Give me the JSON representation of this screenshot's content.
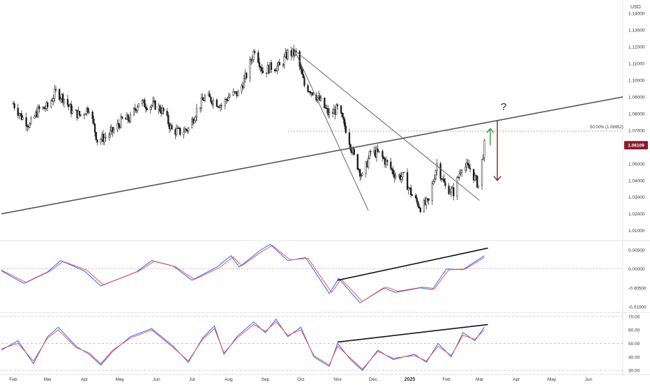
{
  "chart_data": [
    {
      "type": "candlestick",
      "title": "",
      "currency_label": "USD",
      "x_tick_labels": [
        "Feb",
        "Mar",
        "Apr",
        "May",
        "Jun",
        "Jul",
        "Aug",
        "Sep",
        "Oct",
        "Nov",
        "Dec",
        "2025",
        "Feb",
        "Mar",
        "Apr",
        "May",
        "Jun"
      ],
      "y_tick_labels": [
        "1.14000",
        "1.13000",
        "1.12000",
        "1.11000",
        "1.10000",
        "1.09000",
        "1.08000",
        "1.07000",
        "1.06000",
        "1.05000",
        "1.04000",
        "1.03000",
        "1.02000",
        "1.01000"
      ],
      "y_ticks": [
        1.14,
        1.13,
        1.12,
        1.11,
        1.1,
        1.09,
        1.08,
        1.07,
        1.06,
        1.05,
        1.04,
        1.03,
        1.02,
        1.01
      ],
      "ylim": [
        1.004,
        1.148
      ],
      "last_price": 1.06109,
      "last_price_label": "1.06109",
      "fib_level": 1.06952,
      "fib_label": "50.00% (1.06952)",
      "annotation": "?",
      "price_path": [
        [
          "2024-02-01",
          1.086
        ],
        [
          "2024-02-08",
          1.078
        ],
        [
          "2024-02-15",
          1.073
        ],
        [
          "2024-02-22",
          1.082
        ],
        [
          "2024-03-01",
          1.084
        ],
        [
          "2024-03-08",
          1.093
        ],
        [
          "2024-03-15",
          1.089
        ],
        [
          "2024-03-22",
          1.081
        ],
        [
          "2024-03-29",
          1.079
        ],
        [
          "2024-04-05",
          1.084
        ],
        [
          "2024-04-12",
          1.064
        ],
        [
          "2024-04-19",
          1.066
        ],
        [
          "2024-04-26",
          1.07
        ],
        [
          "2024-05-03",
          1.076
        ],
        [
          "2024-05-10",
          1.077
        ],
        [
          "2024-05-17",
          1.087
        ],
        [
          "2024-05-24",
          1.085
        ],
        [
          "2024-05-31",
          1.085
        ],
        [
          "2024-06-07",
          1.081
        ],
        [
          "2024-06-14",
          1.07
        ],
        [
          "2024-06-21",
          1.069
        ],
        [
          "2024-06-28",
          1.071
        ],
        [
          "2024-07-05",
          1.082
        ],
        [
          "2024-07-12",
          1.09
        ],
        [
          "2024-07-19",
          1.088
        ],
        [
          "2024-07-26",
          1.085
        ],
        [
          "2024-08-02",
          1.091
        ],
        [
          "2024-08-09",
          1.092
        ],
        [
          "2024-08-16",
          1.103
        ],
        [
          "2024-08-23",
          1.119
        ],
        [
          "2024-08-30",
          1.105
        ],
        [
          "2024-09-06",
          1.108
        ],
        [
          "2024-09-13",
          1.108
        ],
        [
          "2024-09-20",
          1.116
        ],
        [
          "2024-09-27",
          1.116
        ],
        [
          "2024-10-04",
          1.097
        ],
        [
          "2024-10-11",
          1.093
        ],
        [
          "2024-10-18",
          1.087
        ],
        [
          "2024-10-25",
          1.079
        ],
        [
          "2024-11-01",
          1.083
        ],
        [
          "2024-11-08",
          1.071
        ],
        [
          "2024-11-15",
          1.054
        ],
        [
          "2024-11-22",
          1.042
        ],
        [
          "2024-11-29",
          1.057
        ],
        [
          "2024-12-06",
          1.056
        ],
        [
          "2024-12-13",
          1.05
        ],
        [
          "2024-12-20",
          1.043
        ],
        [
          "2024-12-27",
          1.042
        ],
        [
          "2025-01-03",
          1.031
        ],
        [
          "2025-01-10",
          1.024
        ],
        [
          "2025-01-17",
          1.027
        ],
        [
          "2025-01-24",
          1.05
        ],
        [
          "2025-01-31",
          1.036
        ],
        [
          "2025-02-07",
          1.033
        ],
        [
          "2025-02-14",
          1.049
        ],
        [
          "2025-02-21",
          1.047
        ],
        [
          "2025-02-28",
          1.037
        ],
        [
          "2025-03-05",
          1.061
        ]
      ],
      "trend_lines": [
        {
          "from": [
            "2024-01-22",
            1.02
          ],
          "to": [
            "2025-06-30",
            1.09
          ],
          "color": "#555555"
        },
        {
          "from": [
            "2024-09-22",
            1.12
          ],
          "to": [
            "2025-03-01",
            1.028
          ],
          "color": "#666666"
        },
        {
          "from": [
            "2024-09-25",
            1.119
          ],
          "to": [
            "2024-11-27",
            1.022
          ],
          "color": "#666666"
        }
      ],
      "arrows": [
        {
          "x": "2025-03-10",
          "from": 1.061,
          "to": 1.071,
          "color": "#2e9e36"
        },
        {
          "x": "2025-03-16",
          "from": 1.076,
          "to": 1.04,
          "color": "#8b1a2b"
        }
      ]
    },
    {
      "type": "line",
      "title": "",
      "y_tick_labels": [
        "0.00500",
        "0.00000",
        "-0.00500",
        "-0.01000"
      ],
      "y_ticks": [
        0.005,
        0.0,
        -0.005,
        -0.01
      ],
      "ylim": [
        -0.0115,
        0.0075
      ],
      "series": [
        {
          "color": "#2962ff",
          "values": [
            [
              "2024-01-22",
              -0.0005
            ],
            [
              "2024-02-10",
              -0.0038
            ],
            [
              "2024-03-01",
              -0.0008
            ],
            [
              "2024-03-12",
              0.0022
            ],
            [
              "2024-04-01",
              -0.0005
            ],
            [
              "2024-04-15",
              -0.0045
            ],
            [
              "2024-05-15",
              -0.0008
            ],
            [
              "2024-05-28",
              0.0022
            ],
            [
              "2024-06-15",
              0.0008
            ],
            [
              "2024-07-01",
              -0.003
            ],
            [
              "2024-07-22",
              0.0005
            ],
            [
              "2024-08-03",
              0.0035
            ],
            [
              "2024-08-10",
              0.0005
            ],
            [
              "2024-08-28",
              0.005
            ],
            [
              "2024-09-05",
              0.0065
            ],
            [
              "2024-09-20",
              0.0022
            ],
            [
              "2024-10-05",
              0.003
            ],
            [
              "2024-10-25",
              -0.0065
            ],
            [
              "2024-11-02",
              -0.0025
            ],
            [
              "2024-11-20",
              -0.009
            ],
            [
              "2024-12-10",
              -0.005
            ],
            [
              "2024-12-20",
              -0.0062
            ],
            [
              "2025-01-10",
              -0.005
            ],
            [
              "2025-01-20",
              -0.0055
            ],
            [
              "2025-02-01",
              0.0
            ],
            [
              "2025-02-15",
              -0.0002
            ],
            [
              "2025-03-05",
              0.0035
            ]
          ]
        },
        {
          "color": "#ef5350",
          "values": [
            [
              "2024-01-22",
              -0.0003
            ],
            [
              "2024-02-12",
              -0.0036
            ],
            [
              "2024-03-03",
              -0.0006
            ],
            [
              "2024-03-14",
              0.002
            ],
            [
              "2024-04-03",
              -0.0003
            ],
            [
              "2024-04-17",
              -0.0042
            ],
            [
              "2024-05-17",
              -0.0006
            ],
            [
              "2024-05-30",
              0.002
            ],
            [
              "2024-06-17",
              0.0006
            ],
            [
              "2024-07-03",
              -0.0028
            ],
            [
              "2024-07-24",
              0.0003
            ],
            [
              "2024-08-05",
              0.0032
            ],
            [
              "2024-08-12",
              0.0008
            ],
            [
              "2024-08-30",
              0.0048
            ],
            [
              "2024-09-07",
              0.0062
            ],
            [
              "2024-09-22",
              0.0024
            ],
            [
              "2024-10-07",
              0.0028
            ],
            [
              "2024-10-27",
              -0.0062
            ],
            [
              "2024-11-04",
              -0.0027
            ],
            [
              "2024-11-22",
              -0.0086
            ],
            [
              "2024-12-12",
              -0.0048
            ],
            [
              "2024-12-22",
              -0.0059
            ],
            [
              "2025-01-12",
              -0.0048
            ],
            [
              "2025-01-22",
              -0.0052
            ],
            [
              "2025-02-03",
              -0.0002
            ],
            [
              "2025-02-17",
              0.0
            ],
            [
              "2025-03-05",
              0.003
            ]
          ]
        }
      ],
      "trend_line": {
        "from": [
          "2024-11-01",
          -0.003
        ],
        "to": [
          "2025-03-08",
          0.0055
        ]
      }
    },
    {
      "type": "line",
      "title": "",
      "y_tick_labels": [
        "70.00",
        "60.00",
        "50.00",
        "40.00",
        "30.00"
      ],
      "y_ticks": [
        70,
        60,
        50,
        40,
        30
      ],
      "ylim": [
        27,
        73
      ],
      "dashed_levels": [
        70,
        50,
        30
      ],
      "series": [
        {
          "color": "#2962ff",
          "values": [
            [
              "2024-01-22",
              45
            ],
            [
              "2024-02-05",
              52
            ],
            [
              "2024-02-18",
              35
            ],
            [
              "2024-03-01",
              55
            ],
            [
              "2024-03-10",
              62
            ],
            [
              "2024-03-25",
              48
            ],
            [
              "2024-04-05",
              42
            ],
            [
              "2024-04-15",
              34
            ],
            [
              "2024-04-25",
              44
            ],
            [
              "2024-05-10",
              55
            ],
            [
              "2024-05-28",
              61
            ],
            [
              "2024-06-15",
              48
            ],
            [
              "2024-06-28",
              36
            ],
            [
              "2024-07-10",
              54
            ],
            [
              "2024-07-20",
              63
            ],
            [
              "2024-07-28",
              42
            ],
            [
              "2024-08-08",
              55
            ],
            [
              "2024-08-22",
              66
            ],
            [
              "2024-09-01",
              58
            ],
            [
              "2024-09-10",
              68
            ],
            [
              "2024-09-20",
              55
            ],
            [
              "2024-10-01",
              62
            ],
            [
              "2024-10-12",
              40
            ],
            [
              "2024-10-25",
              33
            ],
            [
              "2024-11-01",
              50
            ],
            [
              "2024-11-12",
              38
            ],
            [
              "2024-11-22",
              30
            ],
            [
              "2024-12-05",
              45
            ],
            [
              "2024-12-18",
              38
            ],
            [
              "2025-01-05",
              42
            ],
            [
              "2025-01-15",
              36
            ],
            [
              "2025-01-25",
              50
            ],
            [
              "2025-02-05",
              40
            ],
            [
              "2025-02-15",
              58
            ],
            [
              "2025-02-25",
              52
            ],
            [
              "2025-03-05",
              62
            ]
          ]
        },
        {
          "color": "#ef5350",
          "values": [
            [
              "2024-01-22",
              46
            ],
            [
              "2024-02-05",
              50
            ],
            [
              "2024-02-18",
              37
            ],
            [
              "2024-03-01",
              54
            ],
            [
              "2024-03-10",
              60
            ],
            [
              "2024-03-25",
              47
            ],
            [
              "2024-04-05",
              43
            ],
            [
              "2024-04-15",
              35
            ],
            [
              "2024-04-25",
              45
            ],
            [
              "2024-05-10",
              54
            ],
            [
              "2024-05-28",
              60
            ],
            [
              "2024-06-15",
              47
            ],
            [
              "2024-06-28",
              37
            ],
            [
              "2024-07-10",
              53
            ],
            [
              "2024-07-20",
              61
            ],
            [
              "2024-07-28",
              43
            ],
            [
              "2024-08-08",
              54
            ],
            [
              "2024-08-22",
              64
            ],
            [
              "2024-09-01",
              59
            ],
            [
              "2024-09-10",
              66
            ],
            [
              "2024-09-20",
              56
            ],
            [
              "2024-10-01",
              60
            ],
            [
              "2024-10-12",
              41
            ],
            [
              "2024-10-25",
              34
            ],
            [
              "2024-11-01",
              48
            ],
            [
              "2024-11-12",
              39
            ],
            [
              "2024-11-22",
              31
            ],
            [
              "2024-12-05",
              44
            ],
            [
              "2024-12-18",
              39
            ],
            [
              "2025-01-05",
              41
            ],
            [
              "2025-01-15",
              37
            ],
            [
              "2025-01-25",
              48
            ],
            [
              "2025-02-05",
              41
            ],
            [
              "2025-02-15",
              56
            ],
            [
              "2025-02-25",
              53
            ],
            [
              "2025-03-05",
              60
            ]
          ]
        }
      ],
      "trend_line": {
        "from": [
          "2024-11-01",
          51
        ],
        "to": [
          "2025-03-08",
          64
        ]
      }
    }
  ]
}
